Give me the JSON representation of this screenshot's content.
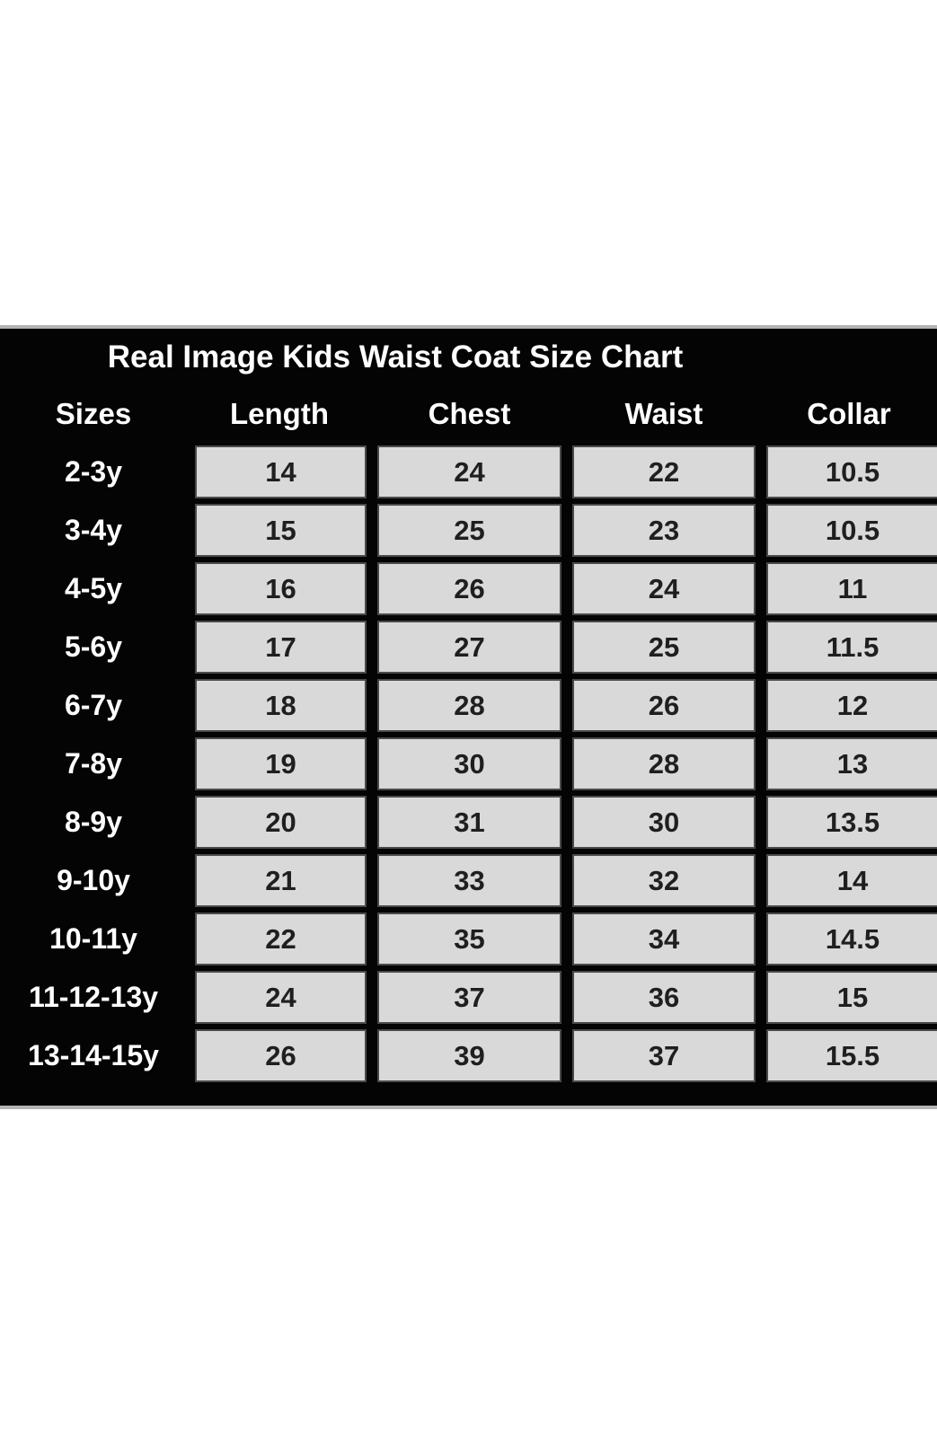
{
  "title": "Real Image Kids Waist Coat Size Chart",
  "colors": {
    "panel_background": "#040404",
    "panel_edge_line": "#b3b3b3",
    "header_text": "#ffffff",
    "cell_background": "#d9d9d9",
    "cell_border": "#4a4a4a",
    "cell_text": "#1f1f1f",
    "page_background": "#ffffff"
  },
  "chart_data": {
    "type": "table",
    "title": "Real Image Kids Waist Coat Size Chart",
    "columns": [
      "Sizes",
      "Length",
      "Chest",
      "Waist",
      "Collar"
    ],
    "rows": [
      {
        "size": "2-3y",
        "values": [
          "14",
          "24",
          "22",
          "10.5"
        ]
      },
      {
        "size": "3-4y",
        "values": [
          "15",
          "25",
          "23",
          "10.5"
        ]
      },
      {
        "size": "4-5y",
        "values": [
          "16",
          "26",
          "24",
          "11"
        ]
      },
      {
        "size": "5-6y",
        "values": [
          "17",
          "27",
          "25",
          "11.5"
        ]
      },
      {
        "size": "6-7y",
        "values": [
          "18",
          "28",
          "26",
          "12"
        ]
      },
      {
        "size": "7-8y",
        "values": [
          "19",
          "30",
          "28",
          "13"
        ]
      },
      {
        "size": "8-9y",
        "values": [
          "20",
          "31",
          "30",
          "13.5"
        ]
      },
      {
        "size": "9-10y",
        "values": [
          "21",
          "33",
          "32",
          "14"
        ]
      },
      {
        "size": "10-11y",
        "values": [
          "22",
          "35",
          "34",
          "14.5"
        ]
      },
      {
        "size": "11-12-13y",
        "values": [
          "24",
          "37",
          "36",
          "15"
        ]
      },
      {
        "size": "13-14-15y",
        "values": [
          "26",
          "39",
          "37",
          "15.5"
        ]
      }
    ]
  }
}
